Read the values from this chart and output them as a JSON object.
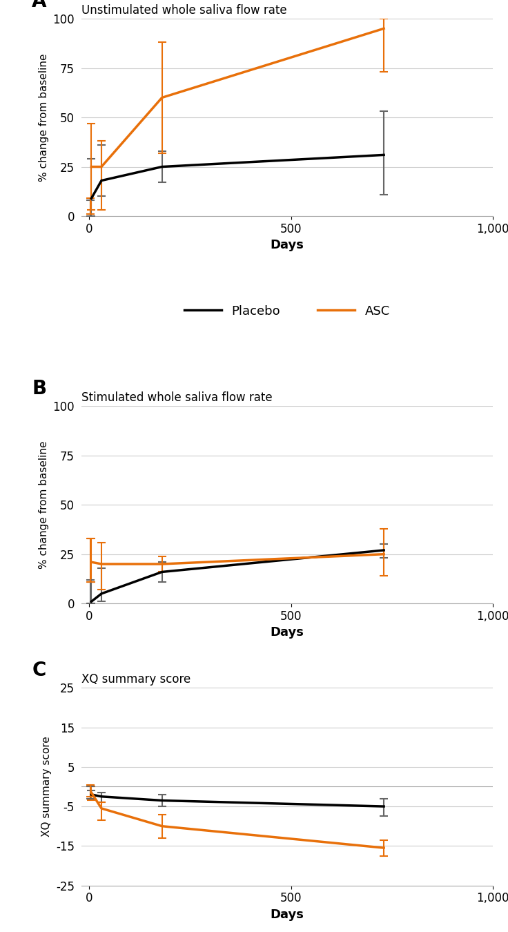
{
  "panel_A": {
    "title": "Unstimulated whole saliva flow rate",
    "xlabel": "Days",
    "ylabel": "% change from baseline",
    "xlim": [
      -20,
      1000
    ],
    "ylim": [
      0,
      100
    ],
    "yticks": [
      0,
      25,
      50,
      75,
      100
    ],
    "xticks": [
      0,
      500,
      1000
    ],
    "xticklabels": [
      "0",
      "500",
      "1,000"
    ],
    "placebo": {
      "x": [
        5,
        30,
        180,
        730
      ],
      "y": [
        9,
        18,
        25,
        31
      ],
      "yerr_lo": [
        9,
        8,
        8,
        20
      ],
      "yerr_hi": [
        20,
        18,
        8,
        22
      ],
      "color": "#000000"
    },
    "asc": {
      "x": [
        5,
        30,
        180,
        730
      ],
      "y": [
        25,
        25,
        60,
        95
      ],
      "yerr_lo": [
        22,
        22,
        28,
        22
      ],
      "yerr_hi": [
        22,
        13,
        28,
        5
      ],
      "color": "#e8700a"
    }
  },
  "panel_B": {
    "title": "Stimulated whole saliva flow rate",
    "xlabel": "Days",
    "ylabel": "% change from baseline",
    "xlim": [
      -20,
      1000
    ],
    "ylim": [
      0,
      100
    ],
    "yticks": [
      0,
      25,
      50,
      75,
      100
    ],
    "xticks": [
      0,
      500,
      1000
    ],
    "xticklabels": [
      "0",
      "500",
      "1,000"
    ],
    "placebo": {
      "x": [
        5,
        30,
        180,
        730
      ],
      "y": [
        1,
        5,
        16,
        27
      ],
      "yerr_lo": [
        1,
        4,
        5,
        4
      ],
      "yerr_hi": [
        10,
        13,
        5,
        3
      ],
      "color": "#000000"
    },
    "asc": {
      "x": [
        5,
        30,
        180,
        730
      ],
      "y": [
        21,
        20,
        20,
        25
      ],
      "yerr_lo": [
        10,
        13,
        4,
        11
      ],
      "yerr_hi": [
        12,
        11,
        4,
        13
      ],
      "color": "#e8700a"
    }
  },
  "panel_C": {
    "title": "XQ summary score",
    "xlabel": "Days",
    "ylabel": "XQ summary score",
    "xlim": [
      -20,
      1000
    ],
    "ylim": [
      -25,
      25
    ],
    "yticks": [
      -25,
      -15,
      -5,
      5,
      15,
      25
    ],
    "yticklabels": [
      "-25",
      "-15",
      "-5",
      "5",
      "15",
      "25"
    ],
    "xticks": [
      0,
      500,
      1000
    ],
    "xticklabels": [
      "0",
      "500",
      "1,000"
    ],
    "placebo": {
      "x": [
        5,
        30,
        180,
        730
      ],
      "y": [
        -2.0,
        -2.5,
        -3.5,
        -5.0
      ],
      "yerr_lo": [
        1.0,
        1.5,
        1.5,
        2.5
      ],
      "yerr_hi": [
        1.0,
        1.0,
        1.5,
        2.0
      ],
      "color": "#000000"
    },
    "asc": {
      "x": [
        5,
        30,
        180,
        730
      ],
      "y": [
        -1.5,
        -5.5,
        -10.0,
        -15.5
      ],
      "yerr_lo": [
        2.0,
        3.0,
        3.0,
        2.0
      ],
      "yerr_hi": [
        1.5,
        1.5,
        3.0,
        2.0
      ],
      "color": "#e8700a"
    }
  },
  "legend_labels": [
    "Placebo",
    "ASC"
  ],
  "legend_colors": [
    "#000000",
    "#e8700a"
  ],
  "panel_labels": [
    "A",
    "B",
    "C"
  ],
  "line_width": 2.5,
  "capsize": 4,
  "elinewidth": 1.5,
  "ecolor_placebo": "#666666",
  "ecolor_asc": "#e8700a",
  "background_color": "#ffffff",
  "grid_color": "#cccccc",
  "spine_color": "#aaaaaa"
}
